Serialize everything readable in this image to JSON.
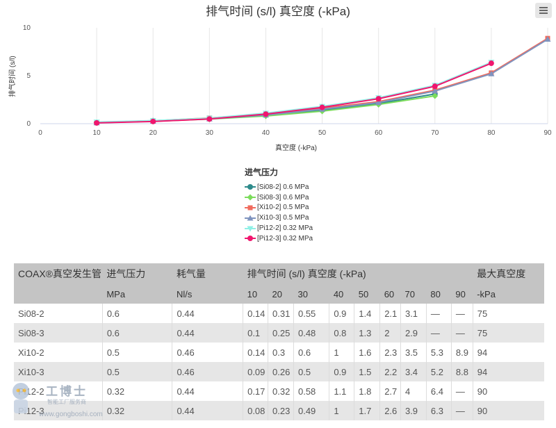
{
  "chart_data": {
    "type": "line",
    "title": "排气时间 (s/l) 真空度 (-kPa)",
    "xlabel": "真空度 (-kPa)",
    "ylabel": "排气时间 (s/l)",
    "xlim": [
      0,
      90
    ],
    "ylim": [
      0,
      10
    ],
    "x_ticks": [
      "0",
      "10",
      "20",
      "30",
      "40",
      "50",
      "60",
      "70",
      "80",
      "90"
    ],
    "y_ticks": [
      "0",
      "5",
      "10"
    ],
    "grid": "vertical",
    "legend": {
      "title": "进气压力",
      "placement": "bottom-center"
    },
    "series": [
      {
        "name": "[Si08-2] 0.6 MPa",
        "color": "#2e8b8b",
        "marker": "circle",
        "x": [
          10,
          20,
          30,
          40,
          50,
          60,
          70
        ],
        "y": [
          0.14,
          0.31,
          0.55,
          0.9,
          1.4,
          2.1,
          3.1
        ]
      },
      {
        "name": "[Si08-3] 0.6 MPa",
        "color": "#7cdc5c",
        "marker": "diamond",
        "x": [
          10,
          20,
          30,
          40,
          50,
          60,
          70
        ],
        "y": [
          0.1,
          0.25,
          0.48,
          0.8,
          1.3,
          2,
          2.9
        ]
      },
      {
        "name": "[Xi10-2] 0.5 MPa",
        "color": "#f06b5d",
        "marker": "square",
        "x": [
          10,
          20,
          30,
          40,
          50,
          60,
          70,
          80,
          90
        ],
        "y": [
          0.14,
          0.3,
          0.6,
          1,
          1.6,
          2.3,
          3.5,
          5.3,
          8.9
        ]
      },
      {
        "name": "[Xi10-3] 0.5 MPa",
        "color": "#7f94bf",
        "marker": "triangle",
        "x": [
          10,
          20,
          30,
          40,
          50,
          60,
          70,
          80,
          90
        ],
        "y": [
          0.09,
          0.26,
          0.5,
          0.9,
          1.5,
          2.2,
          3.4,
          5.2,
          8.8
        ]
      },
      {
        "name": "[Pi12-2] 0.32 MPa",
        "color": "#8ff0e6",
        "marker": "triangle-down",
        "x": [
          10,
          20,
          30,
          40,
          50,
          60,
          70,
          80
        ],
        "y": [
          0.17,
          0.32,
          0.58,
          1.1,
          1.8,
          2.7,
          4,
          6.4
        ]
      },
      {
        "name": "[Pi12-3] 0.32 MPa",
        "color": "#f0166e",
        "marker": "circle",
        "x": [
          10,
          20,
          30,
          40,
          50,
          60,
          70,
          80
        ],
        "y": [
          0.08,
          0.23,
          0.49,
          1,
          1.7,
          2.6,
          3.9,
          6.3
        ]
      }
    ]
  },
  "table": {
    "header_row1": [
      "COAX®真空发生管",
      "进气压力",
      "耗气量",
      "排气时间 (s/l) 真空度 (-kPa)",
      "最大真空度"
    ],
    "header_row2": [
      "",
      "MPa",
      "Nl/s",
      "10",
      "20",
      "30",
      "40",
      "50",
      "60",
      "70",
      "80",
      "90",
      "-kPa"
    ],
    "rows": [
      [
        "Si08-2",
        "0.6",
        "0.44",
        "0.14",
        "0.31",
        "0.55",
        "0.9",
        "1.4",
        "2.1",
        "3.1",
        "—",
        "—",
        "75"
      ],
      [
        "Si08-3",
        "0.6",
        "0.44",
        "0.1",
        "0.25",
        "0.48",
        "0.8",
        "1.3",
        "2",
        "2.9",
        "—",
        "—",
        "75"
      ],
      [
        "Xi10-2",
        "0.5",
        "0.46",
        "0.14",
        "0.3",
        "0.6",
        "1",
        "1.6",
        "2.3",
        "3.5",
        "5.3",
        "8.9",
        "94"
      ],
      [
        "Xi10-3",
        "0.5",
        "0.46",
        "0.09",
        "0.26",
        "0.5",
        "0.9",
        "1.5",
        "2.2",
        "3.4",
        "5.2",
        "8.8",
        "94"
      ],
      [
        "Pi12-2",
        "0.32",
        "0.44",
        "0.17",
        "0.32",
        "0.58",
        "1.1",
        "1.8",
        "2.7",
        "4",
        "6.4",
        "—",
        "90"
      ],
      [
        "Pi12-3",
        "0.32",
        "0.44",
        "0.08",
        "0.23",
        "0.49",
        "1",
        "1.7",
        "2.6",
        "3.9",
        "6.3",
        "—",
        "90"
      ]
    ]
  },
  "watermark": {
    "brand": "工博士",
    "subtitle": "智能工厂服务商",
    "url": "www.gongboshi.com"
  },
  "icons": {
    "menu": "hamburger-menu-icon"
  }
}
